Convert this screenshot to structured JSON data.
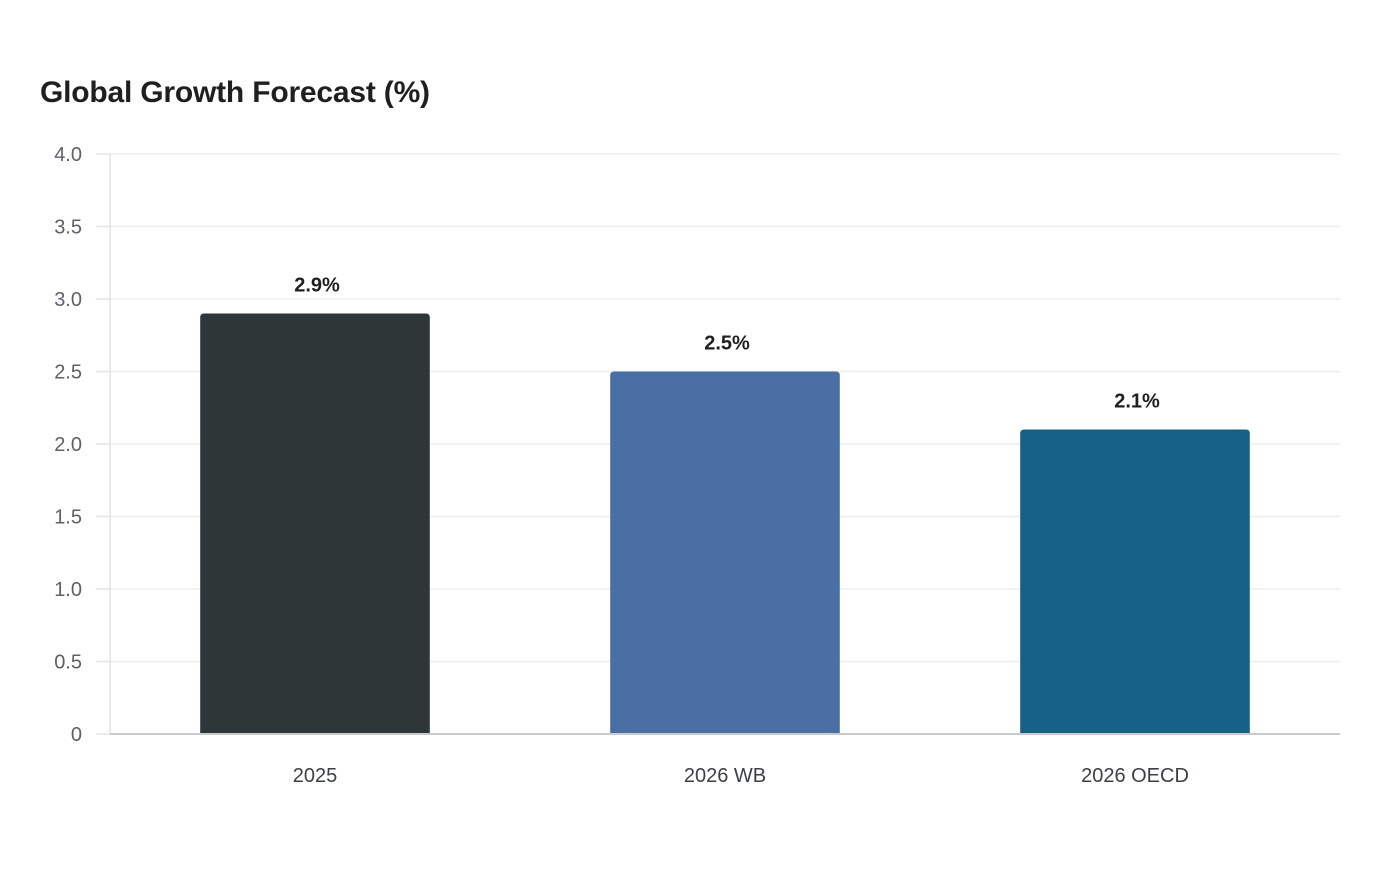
{
  "chart_data": {
    "type": "bar",
    "title": "Global Growth Forecast (%)",
    "xlabel": "",
    "ylabel": "",
    "categories": [
      "2025",
      "2026 WB",
      "2026 OECD"
    ],
    "values": [
      2.9,
      2.5,
      2.1
    ],
    "value_labels": [
      "2.9%",
      "2.5%",
      "2.1%"
    ],
    "colors": [
      "#2e3638",
      "#4a6fa5",
      "#176187"
    ],
    "ylim": [
      0,
      4.0
    ],
    "yticks": [
      0,
      0.5,
      1.0,
      1.5,
      2.0,
      2.5,
      3.0,
      3.5,
      4.0
    ],
    "ytick_labels": [
      "0",
      "0.5",
      "1.0",
      "1.5",
      "2.0",
      "2.5",
      "3.0",
      "3.5",
      "4.0"
    ],
    "grid": true,
    "legend": "none"
  }
}
